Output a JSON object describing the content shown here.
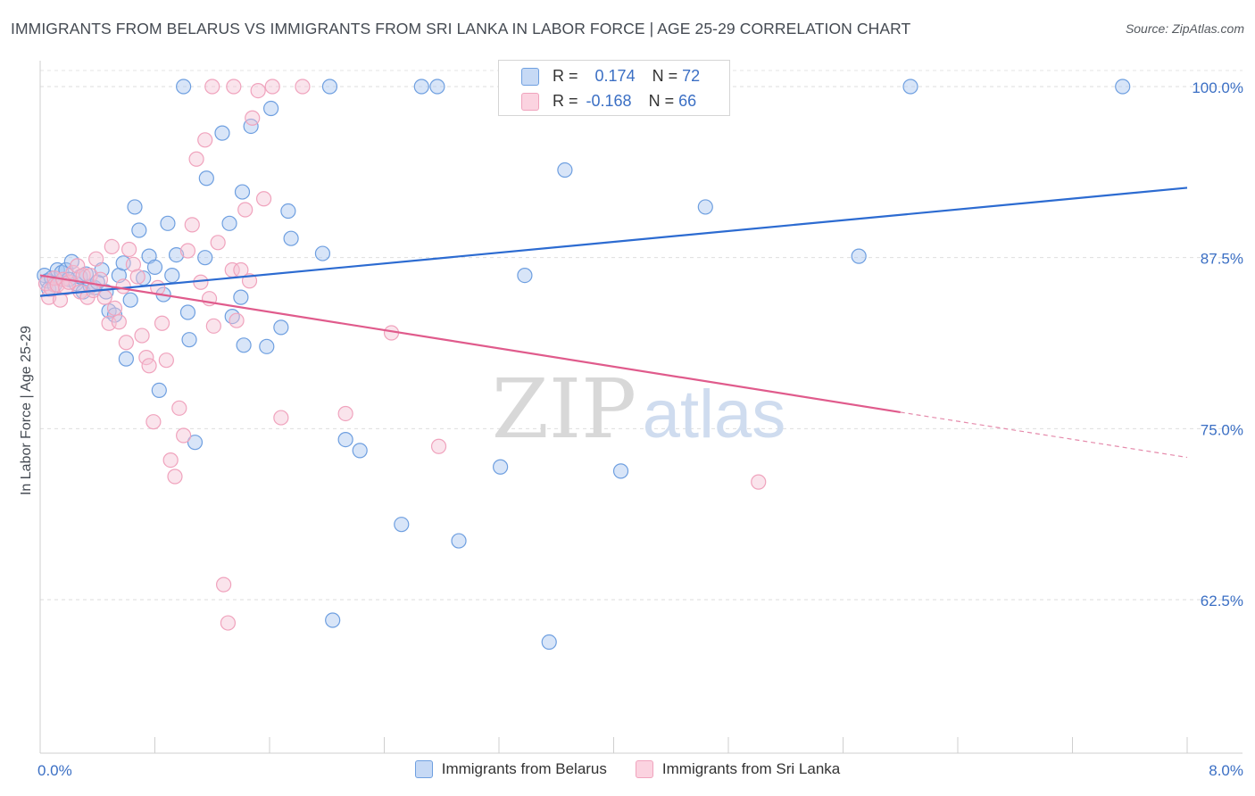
{
  "header": {
    "title": "IMMIGRANTS FROM BELARUS VS IMMIGRANTS FROM SRI LANKA IN LABOR FORCE | AGE 25-29 CORRELATION CHART",
    "source": "Source: ZipAtlas.com"
  },
  "watermark": {
    "zip": "ZIP",
    "atlas": "atlas"
  },
  "correlation_box": {
    "rows": [
      {
        "r_label": "R =",
        "r_value": "0.174",
        "n_label": "N =",
        "n_value": "72",
        "color": "#6e9fe0"
      },
      {
        "r_label": "R =",
        "r_value": "-0.168",
        "n_label": "N =",
        "n_value": "66",
        "color": "#f0a3bd"
      }
    ]
  },
  "chart_data": {
    "type": "scatter",
    "title": "IMMIGRANTS FROM BELARUS VS IMMIGRANTS FROM SRI LANKA IN LABOR FORCE | AGE 25-29 CORRELATION CHART",
    "xlabel": "",
    "ylabel": "In Labor Force | Age 25-29",
    "xlim": [
      0.0,
      8.0
    ],
    "ylim": [
      52.0,
      102.0
    ],
    "x_tick_labels": [
      "0.0%",
      "8.0%"
    ],
    "y_ticks": [
      100.0,
      87.5,
      75.0,
      62.5
    ],
    "y_tick_labels": [
      "100.0%",
      "87.5%",
      "75.0%",
      "62.5%"
    ],
    "grid": true,
    "legend_position": "bottom",
    "series": [
      {
        "name": "Immigrants from Belarus",
        "color": "#6e9fe0",
        "fill": "#a9c6f0",
        "trend": {
          "x": [
            0.0,
            8.0
          ],
          "y": [
            84.7,
            92.6
          ]
        },
        "points": [
          [
            0.03,
            86.2
          ],
          [
            0.05,
            85.8
          ],
          [
            0.06,
            85.2
          ],
          [
            0.08,
            86.0
          ],
          [
            0.1,
            85.5
          ],
          [
            0.12,
            86.6
          ],
          [
            0.15,
            86.4
          ],
          [
            0.18,
            86.6
          ],
          [
            0.2,
            85.9
          ],
          [
            0.22,
            87.2
          ],
          [
            0.25,
            85.6
          ],
          [
            0.28,
            86.1
          ],
          [
            0.3,
            85.0
          ],
          [
            0.32,
            86.3
          ],
          [
            0.35,
            85.4
          ],
          [
            0.38,
            85.3
          ],
          [
            0.4,
            85.7
          ],
          [
            0.43,
            86.6
          ],
          [
            0.46,
            85.0
          ],
          [
            0.48,
            83.6
          ],
          [
            0.52,
            83.3
          ],
          [
            0.55,
            86.2
          ],
          [
            0.58,
            87.1
          ],
          [
            0.6,
            80.1
          ],
          [
            0.63,
            84.4
          ],
          [
            0.66,
            91.2
          ],
          [
            0.69,
            89.5
          ],
          [
            0.72,
            86.0
          ],
          [
            0.76,
            87.6
          ],
          [
            0.8,
            86.8
          ],
          [
            0.83,
            77.8
          ],
          [
            0.86,
            84.8
          ],
          [
            0.89,
            90.0
          ],
          [
            0.92,
            86.2
          ],
          [
            0.95,
            87.7
          ],
          [
            1.0,
            100.0
          ],
          [
            1.03,
            83.5
          ],
          [
            1.04,
            81.5
          ],
          [
            1.08,
            74.0
          ],
          [
            1.15,
            87.5
          ],
          [
            1.16,
            93.3
          ],
          [
            1.27,
            96.6
          ],
          [
            1.32,
            90.0
          ],
          [
            1.34,
            83.2
          ],
          [
            1.4,
            84.6
          ],
          [
            1.41,
            92.3
          ],
          [
            1.42,
            81.1
          ],
          [
            1.47,
            97.1
          ],
          [
            1.58,
            81.0
          ],
          [
            1.61,
            98.4
          ],
          [
            1.68,
            82.4
          ],
          [
            1.73,
            90.9
          ],
          [
            1.75,
            88.9
          ],
          [
            1.97,
            87.8
          ],
          [
            2.02,
            100.0
          ],
          [
            2.04,
            61.0
          ],
          [
            2.13,
            74.2
          ],
          [
            2.23,
            73.4
          ],
          [
            2.52,
            68.0
          ],
          [
            2.66,
            100.0
          ],
          [
            2.77,
            100.0
          ],
          [
            2.92,
            66.8
          ],
          [
            3.21,
            72.2
          ],
          [
            3.38,
            86.2
          ],
          [
            3.55,
            59.4
          ],
          [
            3.66,
            93.9
          ],
          [
            3.96,
            100.0
          ],
          [
            4.05,
            71.9
          ],
          [
            4.35,
            100.0
          ],
          [
            4.64,
            91.2
          ],
          [
            5.71,
            87.6
          ],
          [
            6.07,
            100.0
          ],
          [
            7.55,
            100.0
          ]
        ]
      },
      {
        "name": "Immigrants from Sri Lanka",
        "color": "#f0a3bd",
        "fill": "#f5c3d4",
        "trend": {
          "x": [
            0.0,
            6.0
          ],
          "y": [
            86.2,
            76.2
          ]
        },
        "trend_dashed": {
          "x": [
            6.0,
            8.0
          ],
          "y": [
            76.2,
            72.9
          ]
        },
        "points": [
          [
            0.04,
            85.6
          ],
          [
            0.06,
            84.6
          ],
          [
            0.08,
            85.2
          ],
          [
            0.1,
            86.0
          ],
          [
            0.12,
            85.5
          ],
          [
            0.14,
            84.4
          ],
          [
            0.16,
            85.9
          ],
          [
            0.18,
            85.3
          ],
          [
            0.2,
            85.7
          ],
          [
            0.23,
            86.4
          ],
          [
            0.26,
            86.9
          ],
          [
            0.28,
            85.0
          ],
          [
            0.3,
            86.2
          ],
          [
            0.33,
            84.6
          ],
          [
            0.35,
            86.2
          ],
          [
            0.37,
            85.1
          ],
          [
            0.39,
            87.4
          ],
          [
            0.42,
            85.9
          ],
          [
            0.45,
            84.6
          ],
          [
            0.48,
            82.7
          ],
          [
            0.5,
            88.3
          ],
          [
            0.52,
            83.8
          ],
          [
            0.55,
            82.8
          ],
          [
            0.58,
            85.4
          ],
          [
            0.6,
            81.3
          ],
          [
            0.62,
            88.1
          ],
          [
            0.65,
            87.0
          ],
          [
            0.68,
            86.1
          ],
          [
            0.71,
            81.8
          ],
          [
            0.74,
            80.2
          ],
          [
            0.76,
            79.6
          ],
          [
            0.79,
            75.5
          ],
          [
            0.82,
            85.3
          ],
          [
            0.85,
            82.7
          ],
          [
            0.88,
            80.0
          ],
          [
            0.91,
            72.7
          ],
          [
            0.94,
            71.5
          ],
          [
            0.97,
            76.5
          ],
          [
            1.0,
            74.5
          ],
          [
            1.03,
            88.0
          ],
          [
            1.06,
            89.9
          ],
          [
            1.09,
            94.7
          ],
          [
            1.12,
            85.7
          ],
          [
            1.15,
            96.1
          ],
          [
            1.18,
            84.5
          ],
          [
            1.21,
            82.5
          ],
          [
            1.24,
            88.6
          ],
          [
            1.28,
            63.6
          ],
          [
            1.31,
            60.8
          ],
          [
            1.34,
            86.6
          ],
          [
            1.37,
            82.9
          ],
          [
            1.4,
            86.6
          ],
          [
            1.43,
            91.0
          ],
          [
            1.46,
            85.8
          ],
          [
            1.48,
            97.7
          ],
          [
            1.52,
            99.7
          ],
          [
            1.56,
            91.8
          ],
          [
            1.62,
            100.0
          ],
          [
            1.68,
            75.8
          ],
          [
            1.83,
            100.0
          ],
          [
            2.13,
            76.1
          ],
          [
            2.45,
            82.0
          ],
          [
            2.78,
            73.7
          ],
          [
            5.01,
            71.1
          ],
          [
            1.2,
            100.0
          ],
          [
            1.35,
            100.0
          ]
        ]
      }
    ]
  },
  "legend": {
    "items": [
      {
        "label": "Immigrants from Belarus",
        "color": "#6e9fe0",
        "fill": "#c6d9f5"
      },
      {
        "label": "Immigrants from Sri Lanka",
        "color": "#f0a3bd",
        "fill": "#fbd3e0"
      }
    ]
  }
}
